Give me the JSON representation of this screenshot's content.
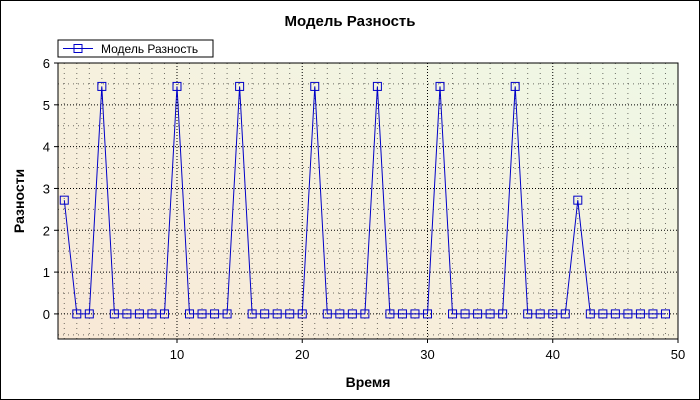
{
  "chart_data": {
    "type": "line",
    "title": "Модель Разность",
    "xlabel": "Время",
    "ylabel": "Разности",
    "xlim": [
      0.5,
      50
    ],
    "ylim": [
      -0.6,
      6
    ],
    "x_ticks": [
      10,
      20,
      30,
      40,
      50
    ],
    "y_ticks": [
      0,
      1,
      2,
      3,
      4,
      5,
      6
    ],
    "grid": true,
    "legend_position": "top-left",
    "series": [
      {
        "name": "Модель Разность",
        "color": "#0000c8",
        "marker": "square",
        "x": [
          1,
          2,
          3,
          4,
          5,
          6,
          7,
          8,
          9,
          10,
          11,
          12,
          13,
          14,
          15,
          16,
          17,
          18,
          19,
          20,
          21,
          22,
          23,
          24,
          25,
          26,
          27,
          28,
          29,
          30,
          31,
          32,
          33,
          34,
          35,
          36,
          37,
          38,
          39,
          40,
          41,
          42,
          43,
          44,
          45,
          46,
          47,
          48,
          49
        ],
        "y": [
          2.72,
          0,
          0,
          5.44,
          0,
          0,
          0,
          0,
          0,
          5.44,
          0,
          0,
          0,
          0,
          5.44,
          0,
          0,
          0,
          0,
          0,
          5.44,
          0,
          0,
          0,
          0,
          5.44,
          0,
          0,
          0,
          0,
          5.44,
          0,
          0,
          0,
          0,
          0,
          5.44,
          0,
          0,
          0,
          0,
          2.72,
          0,
          0,
          0,
          0,
          0,
          0,
          0
        ]
      }
    ]
  }
}
